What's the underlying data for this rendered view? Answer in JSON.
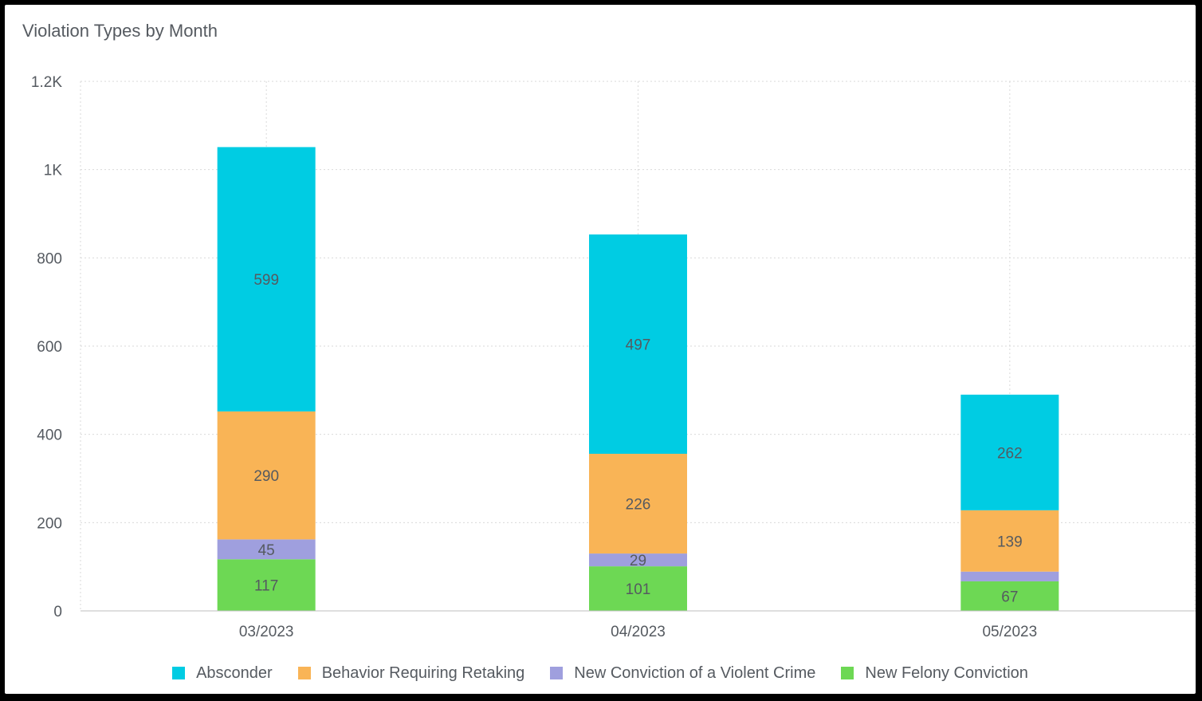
{
  "chart_data": {
    "type": "bar",
    "stacked": true,
    "title": "Violation Types by Month",
    "xlabel": "",
    "ylabel": "",
    "categories": [
      "03/2023",
      "04/2023",
      "05/2023"
    ],
    "ylim": [
      0,
      1200
    ],
    "yticks": [
      0,
      200,
      400,
      600,
      800,
      1000,
      1200
    ],
    "ytick_labels": [
      "0",
      "200",
      "400",
      "600",
      "800",
      "1K",
      "1.2K"
    ],
    "grid": true,
    "legend_position": "bottom",
    "series": [
      {
        "name": "New Felony Conviction",
        "color": "#6dd854",
        "values": [
          117,
          101,
          67
        ],
        "labels": [
          "117",
          "101",
          "67"
        ]
      },
      {
        "name": "New Conviction of a Violent Crime",
        "color": "#9f9fde",
        "values": [
          45,
          29,
          22
        ],
        "labels": [
          "45",
          "29",
          ""
        ]
      },
      {
        "name": "Behavior Requiring Retaking",
        "color": "#f9b456",
        "values": [
          290,
          226,
          139
        ],
        "labels": [
          "290",
          "226",
          "139"
        ]
      },
      {
        "name": "Absconder",
        "color": "#00cce3",
        "values": [
          599,
          497,
          262
        ],
        "labels": [
          "599",
          "497",
          "262"
        ]
      }
    ],
    "legend_order": [
      "Absconder",
      "Behavior Requiring Retaking",
      "New Conviction of a Violent Crime",
      "New Felony Conviction"
    ]
  }
}
